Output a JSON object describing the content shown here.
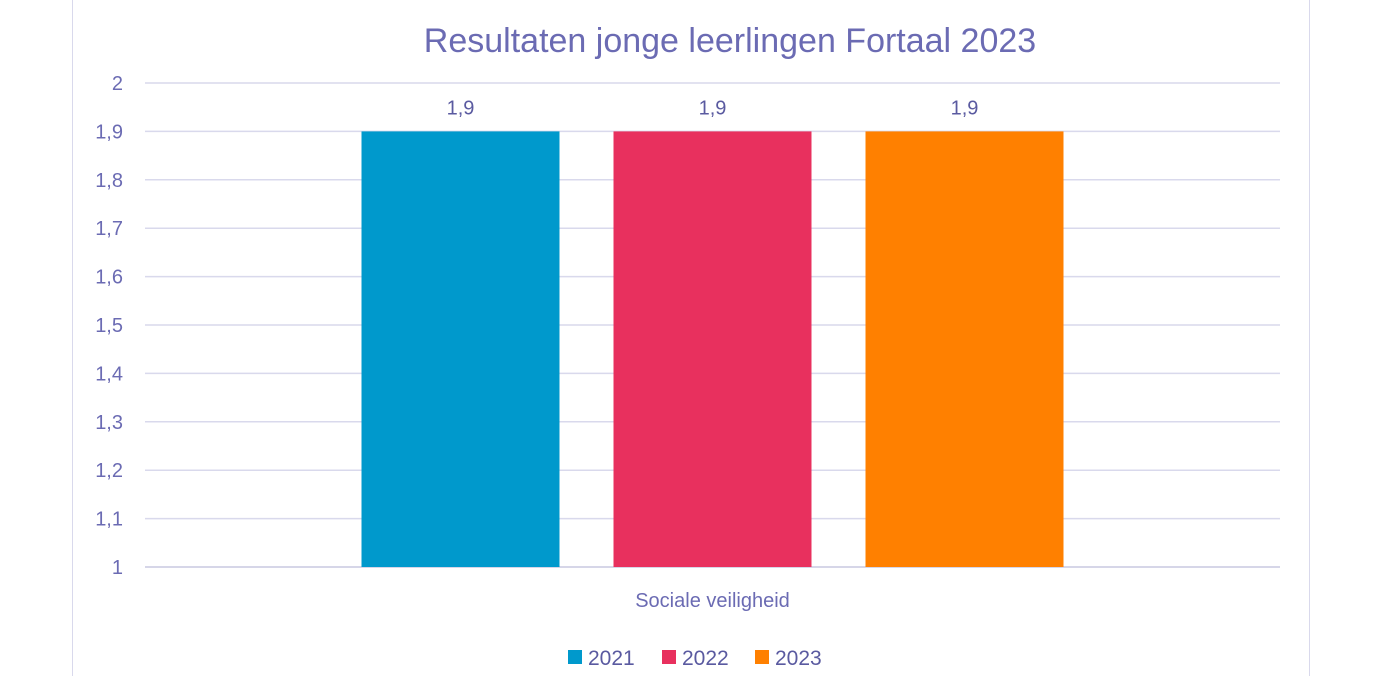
{
  "chart_data": {
    "type": "bar",
    "title": "Resultaten jonge leerlingen Fortaal 2023",
    "categories": [
      "Sociale veiligheid"
    ],
    "series": [
      {
        "name": "2021",
        "values": [
          1.9
        ],
        "color": "#0099cc",
        "label": "1,9"
      },
      {
        "name": "2022",
        "values": [
          1.9
        ],
        "color": "#e8305e",
        "label": "1,9"
      },
      {
        "name": "2023",
        "values": [
          1.9
        ],
        "color": "#ff8000",
        "label": "1,9"
      }
    ],
    "ylim": [
      1,
      2
    ],
    "yticks": [
      "1",
      "1,1",
      "1,2",
      "1,3",
      "1,4",
      "1,5",
      "1,6",
      "1,7",
      "1,8",
      "1,9",
      "2"
    ],
    "grid": true,
    "legend": "bottom",
    "xlabel": "",
    "ylabel": ""
  }
}
